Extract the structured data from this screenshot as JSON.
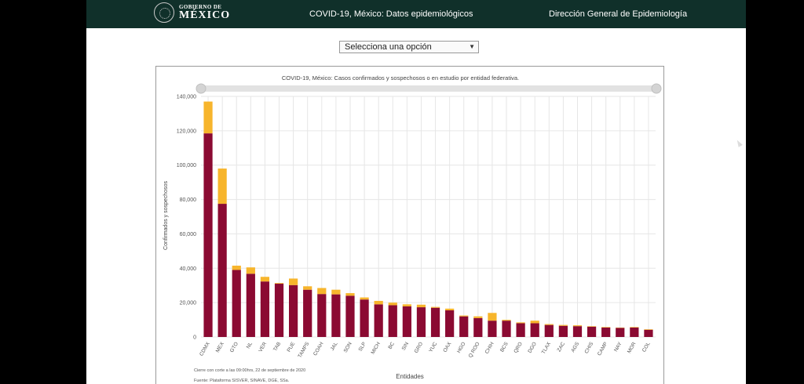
{
  "header": {
    "logo_top": "GOBIERNO DE",
    "logo_main": "MÉXICO",
    "title": "COVID-19, México: Datos epidemiológicos",
    "right": "Dirección General de Epidemiología"
  },
  "select": {
    "value": "Selecciona una opción"
  },
  "chart_data": {
    "type": "bar",
    "stacked": true,
    "title": "COVID-19, México: Casos confirmados y sospechosos o en estudio por entidad federativa.",
    "xlabel": "Entidades",
    "ylabel": "Confirmados y sospechosos",
    "ylim": [
      0,
      140000
    ],
    "yticks": [
      "0",
      "20,000",
      "40,000",
      "60,000",
      "80,000",
      "100,000",
      "120,000",
      "140,000"
    ],
    "grid": true,
    "categories": [
      "CDMX",
      "MEX",
      "GTO",
      "NL",
      "VER",
      "TAB",
      "PUE",
      "TAMPS",
      "COAH",
      "JAL",
      "SON",
      "SLP",
      "MICH",
      "BC",
      "SIN",
      "GRO",
      "YUC",
      "OAX",
      "HGO",
      "Q ROO",
      "CHIH",
      "BCS",
      "QRO",
      "DGO",
      "TLAX",
      "ZAC",
      "AGS",
      "CHIS",
      "CAMP",
      "NAY",
      "MOR",
      "COL"
    ],
    "series": [
      {
        "color": "#8b0a32",
        "values": [
          118500,
          77500,
          39000,
          36800,
          32300,
          31000,
          30200,
          27500,
          25000,
          24800,
          24000,
          21800,
          19000,
          18500,
          17800,
          17300,
          17000,
          15500,
          12000,
          11000,
          9500,
          9500,
          8000,
          8000,
          7000,
          6500,
          6300,
          6000,
          5500,
          5300,
          5500,
          4200
        ]
      },
      {
        "color": "#f7b52c",
        "values": [
          18500,
          20500,
          2500,
          3700,
          2700,
          400,
          3800,
          2000,
          3500,
          2700,
          1500,
          1200,
          2000,
          1500,
          1200,
          1500,
          500,
          1000,
          500,
          1000,
          4500,
          500,
          500,
          1500,
          500,
          500,
          500,
          300,
          300,
          200,
          300,
          300
        ]
      }
    ],
    "notes": [
      "Cierre con corte a las 09:00hrs, 22 de septiembre de 2020",
      "Fuente: Plataforma SISVER, SINAVE, DGE, SSa."
    ]
  }
}
